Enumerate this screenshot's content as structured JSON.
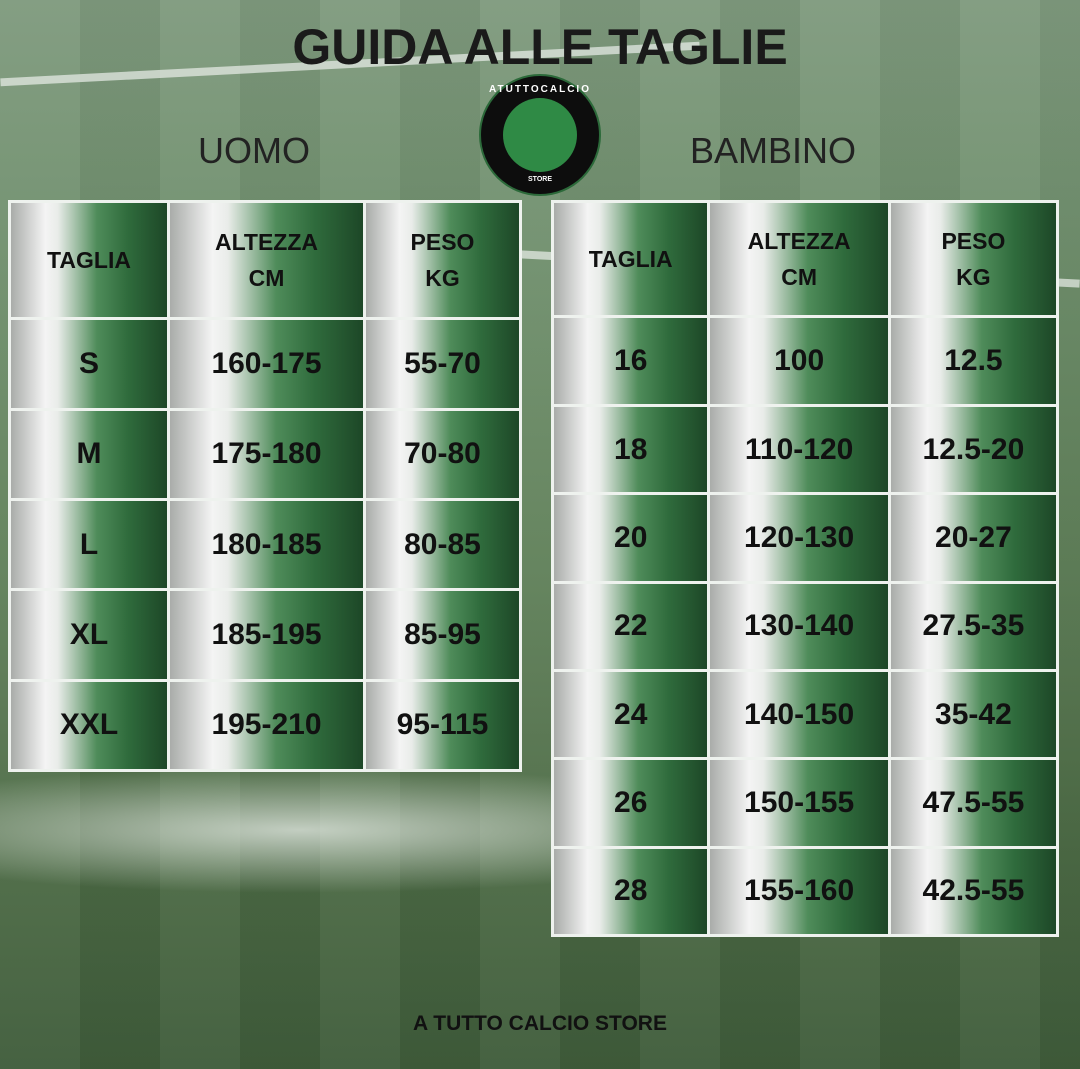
{
  "title": "GUIDA ALLE TAGLIE",
  "logo": {
    "top_text": "ATUTTOCALCIO",
    "bottom_text": "STORE"
  },
  "uomo": {
    "label": "UOMO",
    "headers": [
      "TAGLIA",
      "ALTEZZA\nCM",
      "PESO\nKG"
    ],
    "rows": [
      [
        "S",
        "160-175",
        "55-70"
      ],
      [
        "M",
        "175-180",
        "70-80"
      ],
      [
        "L",
        "180-185",
        "80-85"
      ],
      [
        "XL",
        "185-195",
        "85-95"
      ],
      [
        "XXL",
        "195-210",
        "95-115"
      ]
    ]
  },
  "bambino": {
    "label": "BAMBINO",
    "headers": [
      "TAGLIA",
      "ALTEZZA\nCM",
      "PESO\nKG"
    ],
    "rows": [
      [
        "16",
        "100",
        "12.5"
      ],
      [
        "18",
        "110-120",
        "12.5-20"
      ],
      [
        "20",
        "120-130",
        "20-27"
      ],
      [
        "22",
        "130-140",
        "27.5-35"
      ],
      [
        "24",
        "140-150",
        "35-42"
      ],
      [
        "26",
        "150-155",
        "47.5-55"
      ],
      [
        "28",
        "155-160",
        "42.5-55"
      ]
    ]
  },
  "footer": "A TUTTO CALCIO STORE",
  "colors": {
    "green_dark": "#1d4727",
    "green_mid": "#4f8c5a",
    "silver": "#f4f4f4"
  }
}
